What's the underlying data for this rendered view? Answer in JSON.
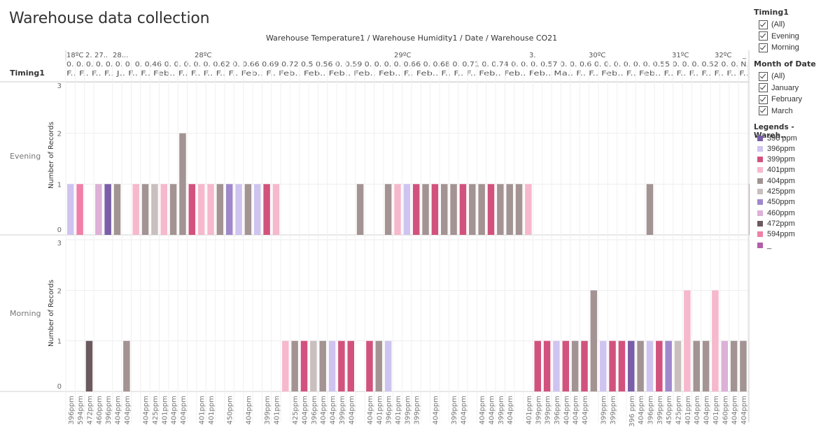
{
  "page": {
    "title": "Warehouse data collection",
    "header_title": "Warehouse Temperature1 / Warehouse Humidity1 / Date / Warehouse CO21",
    "row_dim_label": "Timing1",
    "y_axis_label": "Number of Records"
  },
  "filters": {
    "timing": {
      "title": "Timing1",
      "options": [
        "(All)",
        "Evening",
        "Morning"
      ]
    },
    "month": {
      "title": "Month of Date",
      "options": [
        "(All)",
        "January",
        "February",
        "March"
      ]
    }
  },
  "legend": {
    "title": "Legends - Wareh..",
    "items": [
      {
        "label": "396 ppm",
        "color": "#7a5ea8"
      },
      {
        "label": "396ppm",
        "color": "#cfc4f0"
      },
      {
        "label": "399ppm",
        "color": "#d2527e"
      },
      {
        "label": "401ppm",
        "color": "#f6b8cc"
      },
      {
        "label": "404ppm",
        "color": "#a39393"
      },
      {
        "label": "425ppm",
        "color": "#c9bfbf"
      },
      {
        "label": "450ppm",
        "color": "#9f88cc"
      },
      {
        "label": "460ppm",
        "color": "#ddb0d8"
      },
      {
        "label": "472ppm",
        "color": "#6d5a5e"
      },
      {
        "label": "594ppm",
        "color": "#f17fa8"
      },
      {
        "label": "_",
        "color": "#b45ea6"
      }
    ]
  },
  "column_headers": {
    "temperatures": [
      "18ºC",
      "2.",
      "27..",
      "28...",
      "28ºC",
      "29ºC",
      "3.",
      "30ºC",
      "31ºC",
      "32ºC",
      "_"
    ],
    "humidity_row": "0. 0. 0. 0. 0. 0. 0. 0. 0.46 0. 0. 0. 0. 0. 0.62 0. 0.66 0.69 0.72 0.5 0.56 0. 0.59 0. 0. 0. 0. 0.66 0. 0.68 0. 0.71 0. 0.74 0. 0. 0. 0.57 0. 0. 0.6 0. 0. 0. 0. 0. 0. 0.55 0. 0. 0. 0.52 0. 0. N.",
    "date_row": "F.. F.. F.. F.. J.. F.. F.. Feb.. F.. F.. F.. F.. F.. Feb.. F.. Feb.. Feb.. Feb.. Feb.. Feb.. F.. Feb.. F.. F.. F.. Feb.. Feb.. Feb.. Ma.. F.. F.. Feb.. F.. Feb.. F.. F.. F.. F.. F.. F.. F.."
  },
  "chart_data": {
    "type": "bar",
    "title": "Warehouse data collection",
    "ylabel": "Number of Records",
    "ylim": [
      0,
      3
    ],
    "yticks": [
      0,
      1,
      2,
      3
    ],
    "rows": [
      "Evening",
      "Morning"
    ],
    "categories": [
      "396ppm",
      "594ppm",
      "472ppm",
      "460ppm",
      "396ppm",
      "404ppm",
      "404ppm",
      "",
      "404ppm",
      "425ppm",
      "401ppm",
      "404ppm",
      "404ppm",
      "",
      "401ppm",
      "401ppm",
      "",
      "450ppm",
      "",
      "404ppm",
      "",
      "399ppm",
      "401ppm",
      "",
      "425ppm",
      "404ppm",
      "396ppm",
      "404ppm",
      "404ppm",
      "399ppm",
      "404ppm",
      "",
      "404ppm",
      "401ppm",
      "396ppm",
      "401ppm",
      "399ppm",
      "399ppm",
      "",
      "404ppm",
      "",
      "399ppm",
      "404ppm",
      "",
      "404ppm",
      "404ppm",
      "399ppm",
      "404ppm",
      "",
      "401ppm",
      "399ppm",
      "399ppm",
      "396ppm",
      "404ppm",
      "404ppm",
      "404ppm",
      "",
      "399ppm",
      "399ppm",
      "",
      "396 ppm",
      "404ppm",
      "396ppm",
      "399ppm",
      "450ppm",
      "425ppm",
      "401ppm",
      "404ppm",
      "404ppm",
      "401ppm",
      "460ppm",
      "404ppm",
      "404ppm",
      ""
    ],
    "evening": [
      [
        0,
        1,
        "396ppm"
      ],
      [
        1,
        1,
        "594ppm"
      ],
      [
        3,
        1,
        "460ppm"
      ],
      [
        4,
        1,
        "396 ppm"
      ],
      [
        5,
        1,
        "404ppm"
      ],
      [
        7,
        1,
        "401ppm"
      ],
      [
        8,
        1,
        "404ppm"
      ],
      [
        9,
        1,
        "425ppm"
      ],
      [
        10,
        1,
        "401ppm"
      ],
      [
        11,
        1,
        "404ppm"
      ],
      [
        12,
        2,
        "404ppm"
      ],
      [
        13,
        1,
        "399ppm"
      ],
      [
        14,
        1,
        "401ppm"
      ],
      [
        15,
        1,
        "401ppm"
      ],
      [
        16,
        1,
        "404ppm"
      ],
      [
        17,
        1,
        "450ppm"
      ],
      [
        18,
        1,
        "396ppm"
      ],
      [
        19,
        1,
        "404ppm"
      ],
      [
        20,
        1,
        "396ppm"
      ],
      [
        21,
        1,
        "399ppm"
      ],
      [
        22,
        1,
        "401ppm"
      ],
      [
        31,
        1,
        "404ppm"
      ],
      [
        34,
        1,
        "404ppm"
      ],
      [
        35,
        1,
        "401ppm"
      ],
      [
        36,
        1,
        "396ppm"
      ],
      [
        37,
        1,
        "399ppm"
      ],
      [
        38,
        1,
        "404ppm"
      ],
      [
        39,
        1,
        "399ppm"
      ],
      [
        40,
        1,
        "404ppm"
      ],
      [
        41,
        1,
        "404ppm"
      ],
      [
        42,
        1,
        "399ppm"
      ],
      [
        43,
        1,
        "404ppm"
      ],
      [
        44,
        1,
        "404ppm"
      ],
      [
        45,
        1,
        "399ppm"
      ],
      [
        46,
        1,
        "404ppm"
      ],
      [
        47,
        1,
        "404ppm"
      ],
      [
        48,
        1,
        "404ppm"
      ],
      [
        49,
        1,
        "401ppm"
      ],
      [
        62,
        1,
        "404ppm"
      ],
      [
        73,
        1,
        "_"
      ]
    ],
    "morning": [
      [
        2,
        1,
        "472ppm"
      ],
      [
        6,
        1,
        "404ppm"
      ],
      [
        23,
        1,
        "401ppm"
      ],
      [
        24,
        1,
        "404ppm"
      ],
      [
        25,
        1,
        "399ppm"
      ],
      [
        26,
        1,
        "425ppm"
      ],
      [
        27,
        1,
        "404ppm"
      ],
      [
        28,
        1,
        "396ppm"
      ],
      [
        29,
        1,
        "399ppm"
      ],
      [
        30,
        1,
        "399ppm"
      ],
      [
        32,
        1,
        "399ppm"
      ],
      [
        33,
        1,
        "404ppm"
      ],
      [
        34,
        1,
        "396ppm"
      ],
      [
        50,
        1,
        "399ppm"
      ],
      [
        51,
        1,
        "399ppm"
      ],
      [
        52,
        1,
        "396ppm"
      ],
      [
        53,
        1,
        "399ppm"
      ],
      [
        54,
        1,
        "404ppm"
      ],
      [
        55,
        1,
        "399ppm"
      ],
      [
        56,
        2,
        "404ppm"
      ],
      [
        57,
        1,
        "396ppm"
      ],
      [
        58,
        1,
        "399ppm"
      ],
      [
        59,
        1,
        "399ppm"
      ],
      [
        60,
        1,
        "396 ppm"
      ],
      [
        61,
        1,
        "404ppm"
      ],
      [
        62,
        1,
        "396ppm"
      ],
      [
        63,
        1,
        "399ppm"
      ],
      [
        64,
        1,
        "450ppm"
      ],
      [
        65,
        1,
        "425ppm"
      ],
      [
        66,
        2,
        "401ppm"
      ],
      [
        67,
        1,
        "404ppm"
      ],
      [
        68,
        1,
        "404ppm"
      ],
      [
        69,
        2,
        "401ppm"
      ],
      [
        70,
        1,
        "460ppm"
      ],
      [
        71,
        1,
        "404ppm"
      ],
      [
        72,
        1,
        "404ppm"
      ]
    ]
  }
}
